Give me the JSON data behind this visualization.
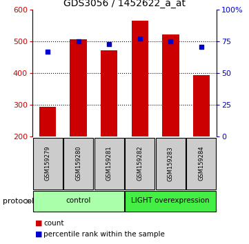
{
  "title": "GDS3056 / 1452622_a_at",
  "samples": [
    "GSM159279",
    "GSM159280",
    "GSM159281",
    "GSM159282",
    "GSM159283",
    "GSM159284"
  ],
  "counts": [
    293,
    507,
    473,
    565,
    523,
    393
  ],
  "percentiles": [
    67,
    75,
    73,
    77,
    75,
    71
  ],
  "bar_color": "#cc0000",
  "dot_color": "#0000cc",
  "ylim_left": [
    200,
    600
  ],
  "ylim_right": [
    0,
    100
  ],
  "yticks_left": [
    200,
    300,
    400,
    500,
    600
  ],
  "yticks_right": [
    0,
    25,
    50,
    75,
    100
  ],
  "yticklabels_right": [
    "0",
    "25",
    "50",
    "75",
    "100%"
  ],
  "groups": [
    {
      "label": "control",
      "indices": [
        0,
        1,
        2
      ],
      "color": "#aaffaa"
    },
    {
      "label": "LIGHT overexpression",
      "indices": [
        3,
        4,
        5
      ],
      "color": "#44ee44"
    }
  ],
  "protocol_label": "protocol",
  "legend_count_label": "count",
  "legend_percentile_label": "percentile rank within the sample",
  "bar_bottom": 200,
  "grid_color": "black",
  "axis_color_left": "#cc0000",
  "axis_color_right": "#0000cc",
  "background_color": "#ffffff",
  "sample_box_color": "#cccccc",
  "title_fontsize": 10,
  "bar_width": 0.55
}
